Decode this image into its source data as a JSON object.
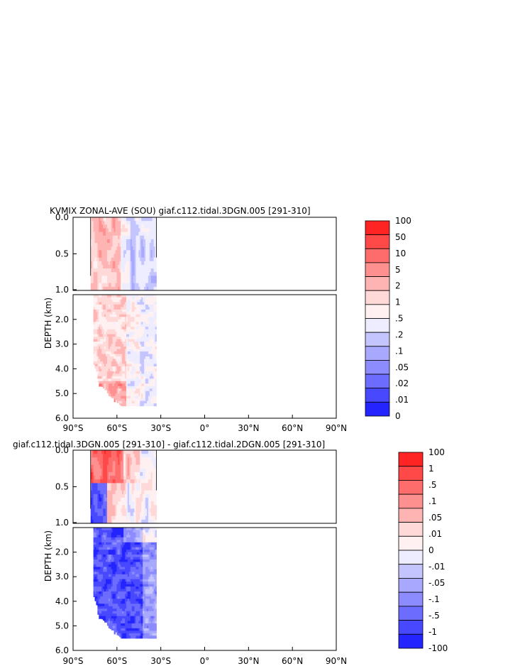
{
  "chart_data": [
    {
      "type": "heatmap",
      "title": "KVMIX ZONAL-AVE (SOU) giaf.c112.tidal.3DGN.005 [291-310]",
      "ylabel": "DEPTH (km)",
      "xlabel": "",
      "x_ticks": [
        "90°S",
        "60°S",
        "30°S",
        "0°",
        "30°N",
        "60°N",
        "90°N"
      ],
      "xlim": [
        -90,
        90
      ],
      "y_ticks_upper": [
        "0.0",
        "0.5",
        "1.0"
      ],
      "y_ticks_lower": [
        "2.0",
        "3.0",
        "4.0",
        "5.0",
        "6.0"
      ],
      "ylim_upper": [
        0.0,
        1.0
      ],
      "ylim_lower": [
        1.0,
        6.0
      ],
      "data_extent": {
        "lat": [
          -78,
          -33
        ],
        "depth": [
          0.0,
          5.5
        ]
      },
      "colorbar_levels": [
        "100",
        "50",
        "10",
        "5",
        "2",
        "1",
        ".5",
        ".2",
        ".1",
        ".05",
        ".02",
        ".01",
        "0"
      ],
      "colorbar_colors": [
        "#ff2424",
        "#ff4848",
        "#ff6c6c",
        "#ff9090",
        "#ffb4b4",
        "#ffd8d8",
        "#fff1f1",
        "#ededff",
        "#c4c4ff",
        "#a8a8ff",
        "#8c8cff",
        "#6c6cff",
        "#4848ff",
        "#2424ff"
      ],
      "pattern": "positive"
    },
    {
      "type": "heatmap",
      "title": "giaf.c112.tidal.3DGN.005 [291-310] - giaf.c112.tidal.2DGN.005 [291-310]",
      "ylabel": "DEPTH (km)",
      "xlabel": "",
      "x_ticks": [
        "90°S",
        "60°S",
        "30°S",
        "0°",
        "30°N",
        "60°N",
        "90°N"
      ],
      "xlim": [
        -90,
        90
      ],
      "y_ticks_upper": [
        "0.0",
        "0.5",
        "1.0"
      ],
      "y_ticks_lower": [
        "2.0",
        "3.0",
        "4.0",
        "5.0",
        "6.0"
      ],
      "ylim_upper": [
        0.0,
        1.0
      ],
      "ylim_lower": [
        1.0,
        6.0
      ],
      "data_extent": {
        "lat": [
          -78,
          -33
        ],
        "depth": [
          0.0,
          5.5
        ]
      },
      "colorbar_levels": [
        "100",
        "1",
        ".5",
        ".1",
        ".05",
        ".01",
        "0",
        "-.01",
        "-.05",
        "-.1",
        "-.5",
        "-1",
        "-100"
      ],
      "colorbar_colors": [
        "#ff2424",
        "#ff4848",
        "#ff6c6c",
        "#ff9090",
        "#ffb4b4",
        "#ffd8d8",
        "#fff1f1",
        "#ededff",
        "#c4c4ff",
        "#a8a8ff",
        "#8c8cff",
        "#6c6cff",
        "#4848ff",
        "#2424ff"
      ],
      "pattern": "difference"
    }
  ]
}
